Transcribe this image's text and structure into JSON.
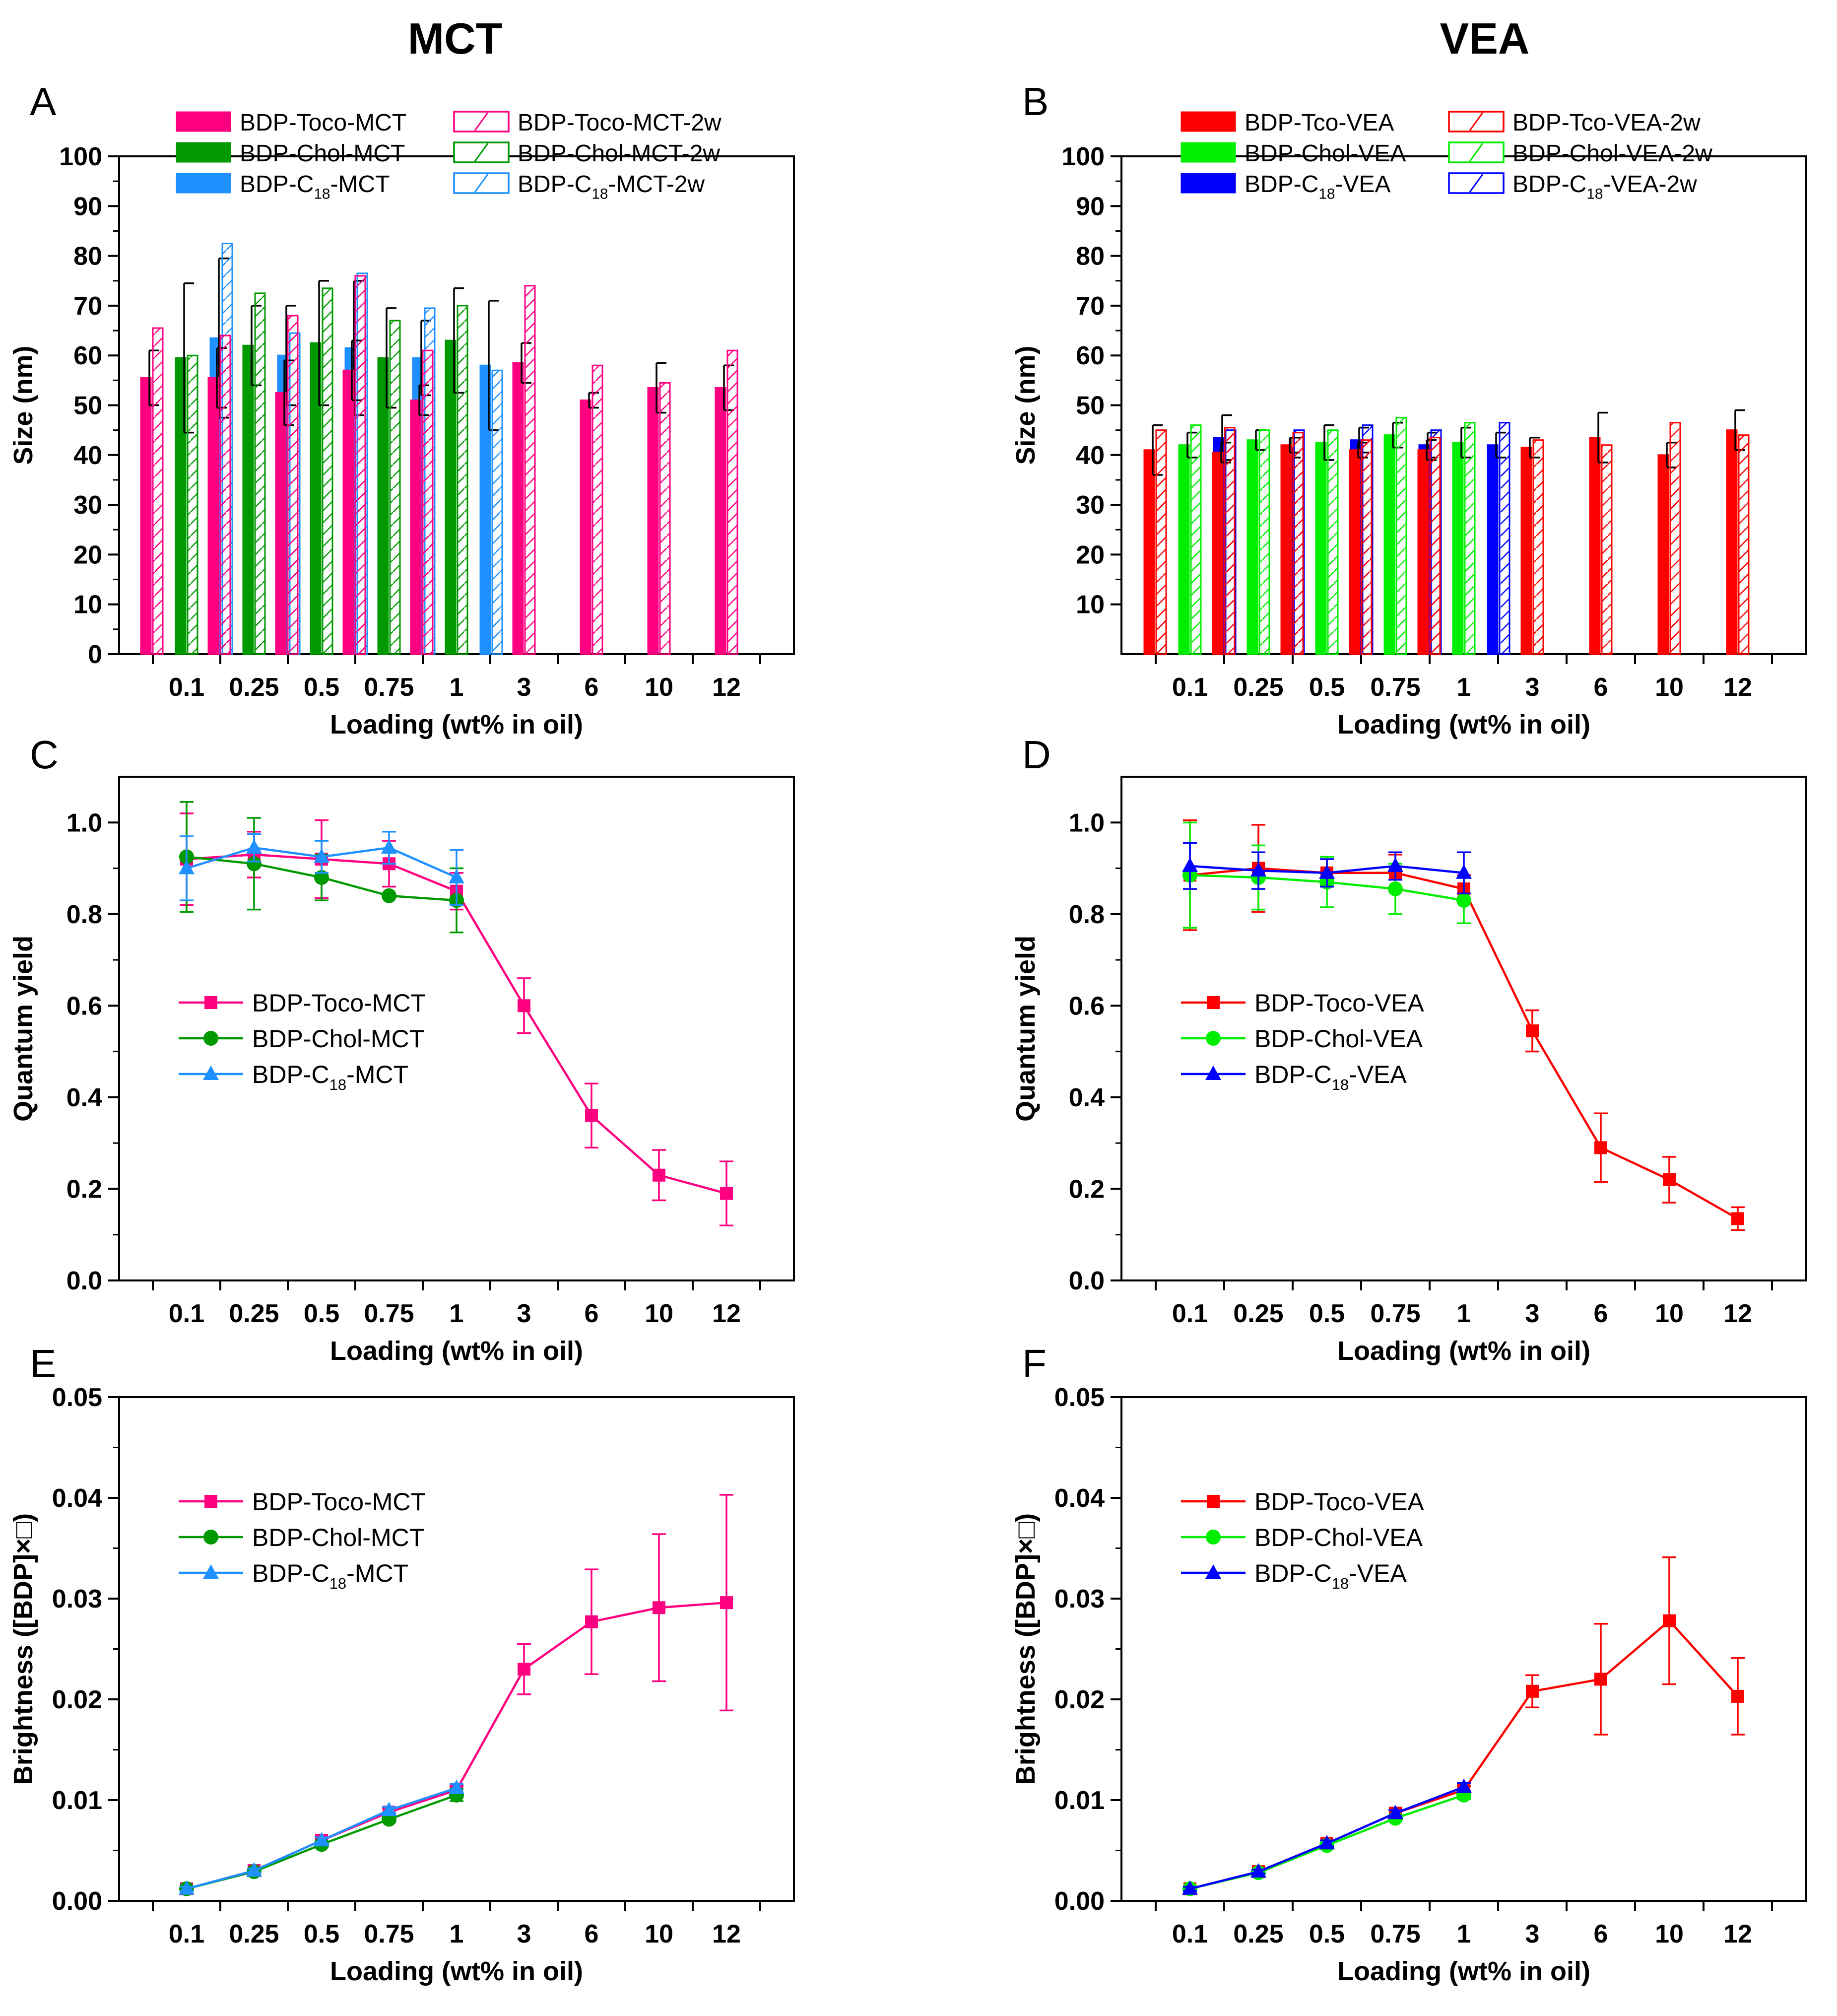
{
  "column_titles": [
    "MCT",
    "VEA"
  ],
  "colors": {
    "toco_mct": "#ff0080",
    "chol_mct": "#009900",
    "c18_mct": "#1e90ff",
    "toco_vea": "#ff0000",
    "chol_vea": "#00ee00",
    "c18_vea": "#0000ff",
    "axis": "#000000",
    "errorbar": "#000000"
  },
  "chart_data": [
    {
      "id": "A",
      "type": "bar",
      "title": "MCT",
      "xlabel": "Loading (wt% in oil)",
      "ylabel": "Size (nm)",
      "ylim": [
        0,
        100
      ],
      "yticks": [
        "0",
        "10",
        "20",
        "30",
        "40",
        "50",
        "60",
        "70",
        "80",
        "90",
        "100"
      ],
      "categories": [
        "0.1",
        "0.25",
        "0.5",
        "0.75",
        "1",
        "3",
        "6",
        "10",
        "12"
      ],
      "legend_position": "top",
      "series": [
        {
          "name": "BDP-Toco-MCT",
          "name_parts": [
            "BDP-Toco-MCT"
          ],
          "color": "#ff0080",
          "style": "filled",
          "values": [
            55.5,
            55.5,
            52.5,
            57,
            51,
            58.5,
            51,
            53.5,
            53.5
          ],
          "errors": [
            5.5,
            6,
            6.5,
            6,
            3,
            4,
            1.5,
            5,
            4.5
          ]
        },
        {
          "name": "BDP-Toco-MCT-2w",
          "name_parts": [
            "BDP-Toco-MCT-2w"
          ],
          "color": "#ff0080",
          "style": "hatched",
          "values": [
            65.5,
            64,
            68,
            76,
            61,
            74,
            58,
            54.5,
            61
          ]
        },
        {
          "name": "BDP-Chol-MCT",
          "name_parts": [
            "BDP-Chol-MCT"
          ],
          "color": "#009900",
          "style": "filled",
          "values": [
            59.5,
            62,
            62.5,
            59.5,
            63,
            null,
            null,
            null,
            null
          ],
          "errors": [
            15,
            8,
            12.5,
            10,
            10.5,
            null,
            null,
            null,
            null
          ]
        },
        {
          "name": "BDP-Chol-MCT-2w",
          "name_parts": [
            "BDP-Chol-MCT-2w"
          ],
          "color": "#009900",
          "style": "hatched",
          "values": [
            60,
            72.5,
            73.5,
            67,
            70,
            null,
            null,
            null,
            null
          ]
        },
        {
          "name": "BDP-C18-MCT",
          "name_parts": [
            "BDP-C",
            "18",
            "-MCT"
          ],
          "color": "#1e90ff",
          "style": "filled",
          "values": [
            63.5,
            60,
            61.5,
            59.5,
            58,
            null,
            null,
            null,
            null
          ],
          "errors": [
            16,
            10,
            13.5,
            7.5,
            13,
            null,
            null,
            null,
            null
          ]
        },
        {
          "name": "BDP-C18-MCT-2w",
          "name_parts": [
            "BDP-C",
            "18",
            "-MCT-2w"
          ],
          "color": "#1e90ff",
          "style": "hatched",
          "values": [
            82.5,
            64.5,
            76.5,
            69.5,
            57,
            null,
            null,
            null,
            null
          ]
        }
      ]
    },
    {
      "id": "B",
      "type": "bar",
      "title": "VEA",
      "xlabel": "Loading (wt% in oil)",
      "ylabel": "Size (nm)",
      "ylim": [
        0,
        100
      ],
      "yticks": [
        "10",
        "20",
        "30",
        "40",
        "50",
        "60",
        "70",
        "80",
        "90",
        "100"
      ],
      "categories": [
        "0.1",
        "0.25",
        "0.5",
        "0.75",
        "1",
        "3",
        "6",
        "10",
        "12"
      ],
      "legend_position": "top",
      "series": [
        {
          "name": "BDP-Tco-VEA",
          "name_parts": [
            "BDP-Tco-VEA"
          ],
          "color": "#ff0000",
          "style": "filled",
          "values": [
            41,
            40.5,
            42,
            41,
            41,
            41.5,
            43.5,
            40,
            45
          ],
          "errors": [
            5,
            2,
            1.5,
            1.5,
            2,
            2,
            5,
            2.5,
            4
          ]
        },
        {
          "name": "BDP-Tco-VEA-2w",
          "name_parts": [
            "BDP-Tco-VEA-2w"
          ],
          "color": "#ff0000",
          "style": "hatched",
          "values": [
            45,
            45.5,
            44.5,
            43,
            43.5,
            43,
            42,
            46.5,
            44
          ]
        },
        {
          "name": "BDP-Chol-VEA",
          "name_parts": [
            "BDP-Chol-VEA"
          ],
          "color": "#00ee00",
          "style": "filled",
          "values": [
            42,
            43,
            42.5,
            44,
            42.5,
            null,
            null,
            null,
            null
          ],
          "errors": [
            2.5,
            2,
            3.5,
            2.5,
            3,
            null,
            null,
            null,
            null
          ]
        },
        {
          "name": "BDP-Chol-VEA-2w",
          "name_parts": [
            "BDP-Chol-VEA-2w"
          ],
          "color": "#00ee00",
          "style": "hatched",
          "values": [
            46,
            45,
            45,
            47.5,
            46.5,
            null,
            null,
            null,
            null
          ]
        },
        {
          "name": "BDP-C18-VEA",
          "name_parts": [
            "BDP-C",
            "18",
            "-VEA"
          ],
          "color": "#0000ff",
          "style": "filled",
          "values": [
            43.5,
            41.5,
            43,
            42,
            42,
            null,
            null,
            null,
            null
          ],
          "errors": [
            4.5,
            2,
            2.5,
            2.5,
            2.5,
            null,
            null,
            null,
            null
          ]
        },
        {
          "name": "BDP-C18-VEA-2w",
          "name_parts": [
            "BDP-C",
            "18",
            "-VEA-2w"
          ],
          "color": "#0000ff",
          "style": "hatched",
          "values": [
            45,
            45,
            46,
            45,
            46.5,
            null,
            null,
            null,
            null
          ]
        }
      ]
    },
    {
      "id": "C",
      "type": "line",
      "xlabel": "Loading (wt% in oil)",
      "ylabel": "Quantum yield",
      "ylim": [
        0,
        1.1
      ],
      "yticks": [
        "0.0",
        "0.2",
        "0.4",
        "0.6",
        "0.8",
        "1.0"
      ],
      "categories": [
        "0.1",
        "0.25",
        "0.5",
        "0.75",
        "1",
        "3",
        "6",
        "10",
        "12"
      ],
      "legend_position": "middle-left",
      "series": [
        {
          "name": "BDP-Toco-MCT",
          "name_parts": [
            "BDP-Toco-MCT"
          ],
          "color": "#ff0080",
          "marker": "square",
          "values": [
            0.92,
            0.93,
            0.92,
            0.91,
            0.85,
            0.6,
            0.36,
            0.23,
            0.19
          ],
          "errors": [
            0.1,
            0.05,
            0.085,
            0.05,
            0.04,
            0.06,
            0.07,
            0.055,
            0.07
          ]
        },
        {
          "name": "BDP-Chol-MCT",
          "name_parts": [
            "BDP-Chol-MCT"
          ],
          "color": "#009900",
          "marker": "circle",
          "values": [
            0.925,
            0.91,
            0.88,
            0.84,
            0.83,
            null,
            null,
            null,
            null
          ],
          "errors": [
            0.12,
            0.1,
            0.05,
            0.0,
            0.07,
            null,
            null,
            null,
            null
          ]
        },
        {
          "name": "BDP-C18-MCT",
          "name_parts": [
            "BDP-C",
            "18",
            "-MCT"
          ],
          "color": "#1e90ff",
          "marker": "triangle",
          "values": [
            0.9,
            0.945,
            0.925,
            0.945,
            0.88,
            null,
            null,
            null,
            null
          ],
          "errors": [
            0.07,
            0.03,
            0.035,
            0.035,
            0.06,
            null,
            null,
            null,
            null
          ]
        }
      ]
    },
    {
      "id": "D",
      "type": "line",
      "xlabel": "Loading (wt% in oil)",
      "ylabel": "Quantum yield",
      "ylim": [
        0,
        1.1
      ],
      "yticks": [
        "0.0",
        "0.2",
        "0.4",
        "0.6",
        "0.8",
        "1.0"
      ],
      "categories": [
        "0.1",
        "0.25",
        "0.5",
        "0.75",
        "1",
        "3",
        "6",
        "10",
        "12"
      ],
      "legend_position": "middle-left",
      "series": [
        {
          "name": "BDP-Toco-VEA",
          "name_parts": [
            "BDP-Toco-VEA"
          ],
          "color": "#ff0000",
          "marker": "square",
          "values": [
            0.885,
            0.9,
            0.89,
            0.89,
            0.855,
            0.545,
            0.29,
            0.22,
            0.135
          ],
          "errors": [
            0.12,
            0.095,
            0.03,
            0.04,
            0.03,
            0.045,
            0.075,
            0.05,
            0.025
          ]
        },
        {
          "name": "BDP-Chol-VEA",
          "name_parts": [
            "BDP-Chol-VEA"
          ],
          "color": "#00ee00",
          "marker": "circle",
          "values": [
            0.885,
            0.88,
            0.87,
            0.855,
            0.83,
            null,
            null,
            null,
            null
          ],
          "errors": [
            0.115,
            0.07,
            0.055,
            0.055,
            0.05,
            null,
            null,
            null,
            null
          ]
        },
        {
          "name": "BDP-C18-VEA",
          "name_parts": [
            "BDP-C",
            "18",
            "-VEA"
          ],
          "color": "#0000ff",
          "marker": "triangle",
          "values": [
            0.905,
            0.895,
            0.89,
            0.905,
            0.89,
            null,
            null,
            null,
            null
          ],
          "errors": [
            0.05,
            0.04,
            0.03,
            0.03,
            0.045,
            null,
            null,
            null,
            null
          ]
        }
      ]
    },
    {
      "id": "E",
      "type": "line",
      "xlabel": "Loading (wt% in oil)",
      "ylabel": "Brightness ([BDP]×□)",
      "ylim": [
        0,
        0.05
      ],
      "yticks": [
        "0.00",
        "0.01",
        "0.02",
        "0.03",
        "0.04",
        "0.05"
      ],
      "categories": [
        "0.1",
        "0.25",
        "0.5",
        "0.75",
        "1",
        "3",
        "6",
        "10",
        "12"
      ],
      "legend_position": "top-left",
      "series": [
        {
          "name": "BDP-Toco-MCT",
          "name_parts": [
            "BDP-Toco-MCT"
          ],
          "color": "#ff0080",
          "marker": "square",
          "values": [
            0.0012,
            0.003,
            0.006,
            0.0088,
            0.011,
            0.023,
            0.0277,
            0.0291,
            0.0296
          ],
          "errors": [
            0.0002,
            0.0002,
            0.0003,
            0.0004,
            0.0004,
            0.0025,
            0.0052,
            0.0073,
            0.0107
          ]
        },
        {
          "name": "BDP-Chol-MCT",
          "name_parts": [
            "BDP-Chol-MCT"
          ],
          "color": "#009900",
          "marker": "circle",
          "values": [
            0.0012,
            0.0029,
            0.0056,
            0.0081,
            0.0105,
            null,
            null,
            null,
            null
          ],
          "errors": [
            0.0002,
            0.0002,
            0.0003,
            0.0003,
            0.0006,
            null,
            null,
            null,
            null
          ]
        },
        {
          "name": "BDP-C18-MCT",
          "name_parts": [
            "BDP-C",
            "18",
            "-MCT"
          ],
          "color": "#1e90ff",
          "marker": "triangle",
          "values": [
            0.0012,
            0.003,
            0.006,
            0.009,
            0.0112,
            null,
            null,
            null,
            null
          ],
          "errors": [
            0.0002,
            0.0002,
            0.0003,
            0.0003,
            0.0004,
            null,
            null,
            null,
            null
          ]
        }
      ]
    },
    {
      "id": "F",
      "type": "line",
      "xlabel": "Loading (wt% in oil)",
      "ylabel": "Brightness ([BDP]×□)",
      "ylim": [
        0,
        0.05
      ],
      "yticks": [
        "0.00",
        "0.01",
        "0.02",
        "0.03",
        "0.04",
        "0.05"
      ],
      "categories": [
        "0.1",
        "0.25",
        "0.5",
        "0.75",
        "1",
        "3",
        "6",
        "10",
        "12"
      ],
      "legend_position": "top-left",
      "series": [
        {
          "name": "BDP-Toco-VEA",
          "name_parts": [
            "BDP-Toco-VEA"
          ],
          "color": "#ff0000",
          "marker": "square",
          "values": [
            0.0012,
            0.0029,
            0.0057,
            0.0087,
            0.011,
            0.0208,
            0.022,
            0.0278,
            0.0203
          ],
          "errors": [
            0.0002,
            0.0002,
            0.0003,
            0.0003,
            0.0004,
            0.0016,
            0.0055,
            0.0063,
            0.0038
          ]
        },
        {
          "name": "BDP-Chol-VEA",
          "name_parts": [
            "BDP-Chol-VEA"
          ],
          "color": "#00ee00",
          "marker": "circle",
          "values": [
            0.0012,
            0.0028,
            0.0055,
            0.0082,
            0.0105,
            null,
            null,
            null,
            null
          ],
          "errors": [
            0.0002,
            0.0002,
            0.0003,
            0.0003,
            0.0004,
            null,
            null,
            null,
            null
          ]
        },
        {
          "name": "BDP-C18-VEA",
          "name_parts": [
            "BDP-C",
            "18",
            "-VEA"
          ],
          "color": "#0000ff",
          "marker": "triangle",
          "values": [
            0.0012,
            0.0029,
            0.0057,
            0.0087,
            0.0113,
            null,
            null,
            null,
            null
          ],
          "errors": [
            0.0002,
            0.0002,
            0.0003,
            0.0003,
            0.0004,
            null,
            null,
            null,
            null
          ]
        }
      ]
    }
  ]
}
